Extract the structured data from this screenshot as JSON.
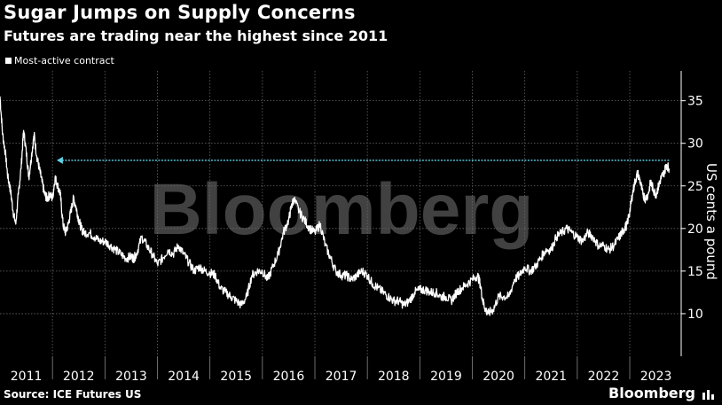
{
  "header": {
    "title": "Sugar Jumps on Supply Concerns",
    "subtitle": "Futures are trading near the highest since 2011"
  },
  "legend": {
    "label": "Most-active contract"
  },
  "footer": {
    "source": "Source: ICE Futures US",
    "brand": "Bloomberg"
  },
  "watermark": "Bloomberg",
  "colors": {
    "background": "#000000",
    "line": "#ffffff",
    "arrow": "#5fd3e6",
    "grid": "#666666"
  },
  "chart_data": {
    "type": "line",
    "title": "Sugar Jumps on Supply Concerns",
    "subtitle": "Futures are trading near the highest since 2011",
    "xlabel": "",
    "ylabel": "US cents a pound",
    "ylim": [
      5,
      38.5
    ],
    "xlim": [
      2011.0,
      2023.98
    ],
    "yticks": [
      10,
      15,
      20,
      25,
      30,
      35
    ],
    "xtick_labels": [
      "2011",
      "2012",
      "2013",
      "2014",
      "2015",
      "2016",
      "2017",
      "2018",
      "2019",
      "2020",
      "2021",
      "2022",
      "2023"
    ],
    "reference_arrow": {
      "from_x": 2023.75,
      "to_x": 2012.08,
      "value": 28
    },
    "series": [
      {
        "name": "Most-active contract",
        "x": [
          2011.0,
          2011.05,
          2011.1,
          2011.15,
          2011.2,
          2011.25,
          2011.3,
          2011.35,
          2011.4,
          2011.45,
          2011.5,
          2011.55,
          2011.6,
          2011.65,
          2011.7,
          2011.75,
          2011.8,
          2011.85,
          2011.9,
          2011.95,
          2012.0,
          2012.05,
          2012.1,
          2012.15,
          2012.2,
          2012.25,
          2012.3,
          2012.35,
          2012.4,
          2012.45,
          2012.5,
          2012.55,
          2012.6,
          2012.7,
          2012.8,
          2012.9,
          2013.0,
          2013.1,
          2013.2,
          2013.3,
          2013.4,
          2013.5,
          2013.55,
          2013.6,
          2013.7,
          2013.8,
          2013.9,
          2014.0,
          2014.1,
          2014.2,
          2014.3,
          2014.4,
          2014.5,
          2014.6,
          2014.7,
          2014.8,
          2014.9,
          2015.0,
          2015.1,
          2015.2,
          2015.3,
          2015.4,
          2015.5,
          2015.6,
          2015.7,
          2015.8,
          2015.9,
          2016.0,
          2016.1,
          2016.2,
          2016.3,
          2016.4,
          2016.5,
          2016.55,
          2016.6,
          2016.7,
          2016.8,
          2016.9,
          2017.0,
          2017.1,
          2017.2,
          2017.3,
          2017.4,
          2017.5,
          2017.6,
          2017.7,
          2017.8,
          2017.9,
          2018.0,
          2018.1,
          2018.2,
          2018.3,
          2018.4,
          2018.5,
          2018.6,
          2018.7,
          2018.8,
          2018.9,
          2019.0,
          2019.1,
          2019.2,
          2019.3,
          2019.4,
          2019.5,
          2019.6,
          2019.7,
          2019.8,
          2019.9,
          2020.0,
          2020.1,
          2020.15,
          2020.2,
          2020.25,
          2020.3,
          2020.4,
          2020.5,
          2020.6,
          2020.7,
          2020.8,
          2020.9,
          2021.0,
          2021.1,
          2021.2,
          2021.3,
          2021.4,
          2021.5,
          2021.6,
          2021.7,
          2021.8,
          2021.9,
          2022.0,
          2022.1,
          2022.2,
          2022.3,
          2022.4,
          2022.5,
          2022.6,
          2022.7,
          2022.8,
          2022.85,
          2022.9,
          2022.95,
          2023.0,
          2023.05,
          2023.1,
          2023.15,
          2023.2,
          2023.25,
          2023.3,
          2023.35,
          2023.4,
          2023.45,
          2023.5,
          2023.55,
          2023.6,
          2023.65,
          2023.7,
          2023.75
        ],
        "values": [
          35.5,
          31.0,
          29.0,
          26.0,
          24.5,
          22.0,
          20.5,
          24.0,
          27.0,
          31.5,
          29.0,
          26.0,
          28.5,
          31.0,
          28.5,
          27.0,
          25.5,
          24.0,
          23.5,
          24.0,
          23.5,
          26.0,
          25.0,
          24.0,
          20.5,
          19.5,
          20.5,
          22.0,
          23.5,
          22.5,
          21.0,
          20.0,
          19.5,
          19.5,
          19.0,
          18.5,
          18.5,
          18.0,
          17.5,
          17.0,
          16.5,
          16.7,
          16.5,
          17.0,
          19.0,
          18.0,
          17.0,
          15.8,
          16.5,
          17.5,
          17.0,
          18.0,
          17.0,
          16.0,
          15.0,
          15.5,
          15.0,
          14.8,
          14.5,
          13.0,
          12.5,
          12.0,
          11.5,
          11.0,
          12.0,
          14.5,
          15.0,
          15.0,
          14.0,
          15.5,
          17.0,
          19.5,
          21.0,
          22.5,
          23.5,
          22.0,
          21.0,
          20.0,
          19.5,
          20.5,
          18.0,
          16.5,
          15.0,
          14.5,
          14.5,
          14.0,
          14.5,
          15.0,
          14.5,
          13.5,
          13.0,
          12.5,
          12.0,
          11.5,
          11.5,
          11.0,
          11.5,
          12.5,
          12.8,
          12.8,
          12.5,
          12.5,
          12.0,
          12.0,
          11.5,
          12.5,
          13.0,
          13.5,
          14.0,
          14.5,
          13.5,
          11.5,
          10.5,
          10.0,
          10.5,
          12.0,
          12.0,
          12.0,
          14.0,
          14.5,
          15.5,
          15.0,
          15.5,
          16.5,
          17.5,
          17.5,
          19.0,
          19.5,
          20.0,
          19.5,
          19.0,
          18.5,
          19.5,
          19.0,
          18.0,
          18.0,
          17.5,
          18.0,
          19.0,
          19.5,
          20.0,
          20.5,
          22.0,
          24.0,
          25.5,
          26.5,
          25.5,
          24.0,
          23.5,
          24.0,
          25.5,
          24.5,
          24.0,
          25.0,
          26.0,
          26.5,
          27.5,
          27.0
        ]
      }
    ]
  }
}
